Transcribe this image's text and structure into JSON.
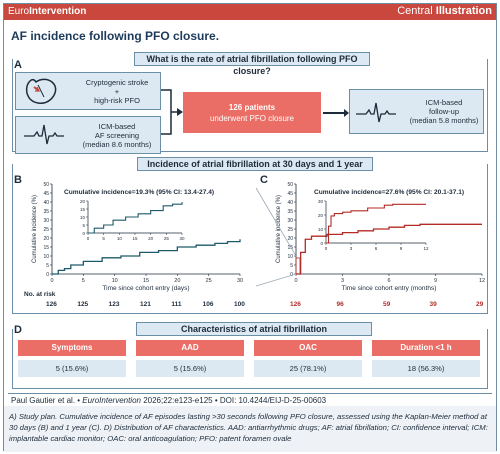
{
  "header": {
    "brand_prefix": "Euro",
    "brand_suffix": "Intervention",
    "central": "Central",
    "illustration": "Illustration"
  },
  "title": "AF incidence following PFO closure.",
  "sectionA": {
    "letter": "A",
    "question": "What is the rate of atrial fibrillation following PFO closure?",
    "box1": [
      "Cryptogenic stroke",
      "+",
      "high-risk PFO"
    ],
    "box2": [
      "ICM-based",
      "AF screening",
      "(median 8.6 months)"
    ],
    "center": [
      "126 patients",
      "underwent PFO closure"
    ],
    "right": [
      "ICM-based",
      "follow-up",
      "(median 5.8 months)"
    ]
  },
  "sectionBC": {
    "banner": "Incidence of atrial fibrillation at 30 days and 1 year",
    "letterB": "B",
    "letterC": "C",
    "ylabel": "Cumulative incidence (%)",
    "xlabelB": "Time since cohort entry (days)",
    "xlabelC": "Time since cohort entry (months)",
    "no_at_risk": "No. at risk",
    "riskB": [
      "126",
      "125",
      "123",
      "121",
      "111",
      "106",
      "100"
    ],
    "riskC": [
      "126",
      "96",
      "59",
      "39",
      "29"
    ]
  },
  "chart_data": [
    {
      "type": "line",
      "title": "Cumulative incidence=19.3% (95% CI: 13.4-27.4)",
      "xlabel": "Time since cohort entry (days)",
      "ylabel": "Cumulative incidence (%)",
      "x_ticks": [
        0,
        5,
        10,
        15,
        20,
        25,
        30
      ],
      "y_ticks": [
        0,
        5,
        10,
        15,
        20,
        25,
        30,
        35,
        40,
        45,
        50
      ],
      "xlim": [
        0,
        30
      ],
      "ylim": [
        0,
        50
      ],
      "series": [
        {
          "x": [
            0,
            1,
            2,
            3,
            5,
            8,
            11,
            14,
            17,
            20,
            23,
            26,
            28,
            30
          ],
          "y": [
            0,
            2,
            3,
            5,
            7,
            9,
            10,
            12,
            13,
            15,
            16,
            17,
            18,
            19.3
          ]
        }
      ],
      "inset": {
        "x_ticks": [
          0,
          5,
          10,
          15,
          20,
          25,
          30
        ],
        "y_ticks": [
          0,
          5,
          10,
          15,
          20
        ],
        "series_x": [
          0,
          2,
          5,
          8,
          12,
          16,
          20,
          24,
          27,
          30
        ],
        "series_y": [
          0,
          3,
          5,
          8,
          10,
          12,
          14,
          17,
          18,
          19.3
        ]
      }
    },
    {
      "type": "line",
      "title": "Cumulative incidence=27.6% (95% CI: 20.1-37.1)",
      "xlabel": "Time since cohort entry (months)",
      "ylabel": "Cumulative incidence (%)",
      "x_ticks": [
        0,
        3,
        6,
        9,
        12
      ],
      "y_ticks": [
        0,
        5,
        10,
        15,
        20,
        25,
        30,
        35,
        40,
        45,
        50
      ],
      "xlim": [
        0,
        12
      ],
      "ylim": [
        0,
        50
      ],
      "series": [
        {
          "x": [
            0,
            0.3,
            0.6,
            1,
            2,
            3,
            4,
            5,
            6,
            7,
            8,
            12
          ],
          "y": [
            0,
            12,
            19.3,
            21,
            22,
            23,
            24,
            25,
            26,
            27,
            27.6,
            27.6
          ]
        }
      ],
      "inset": {
        "x_ticks": [
          0,
          3,
          6,
          9,
          12
        ],
        "y_ticks": [
          0,
          10,
          20,
          30
        ],
        "series_x": [
          0,
          0.3,
          0.6,
          1,
          2,
          3,
          5,
          7,
          8,
          12
        ],
        "series_y": [
          0,
          12,
          19.3,
          21,
          22,
          23,
          25,
          27,
          27.6,
          27.6
        ]
      }
    }
  ],
  "sectionD": {
    "letter": "D",
    "banner": "Characteristics of atrial fibrillation",
    "headers": [
      "Symptoms",
      "AAD",
      "OAC",
      "Duration <1 h"
    ],
    "values": [
      "5 (15.6%)",
      "5 (15.6%)",
      "25 (78.1%)",
      "18 (56.3%)"
    ]
  },
  "citation": {
    "authors": "Paul Gautier et al. • ",
    "journal": "EuroIntervention",
    "rest": " 2026;22:e123-e125 • DOI: 10.4244/EIJ-D-25-00603"
  },
  "footnote": "A) Study plan. Cumulative incidence of AF episodes lasting >30 seconds following PFO closure, assessed using the Kaplan-Meier method at 30 days (B) and 1 year (C). D) Distribution of AF characteristics. AAD: antiarrhythmic drugs; AF: atrial fibrillation; CI: confidence interval; ICM: implantable cardiac monitor; OAC: oral anticoagulation; PFO: patent foramen ovale",
  "colors": {
    "header": "#c9473c",
    "box": "#dce9f3",
    "accent_red": "#ea6e66",
    "curveB": "#1d5a6a",
    "curveC": "#b32b26"
  }
}
